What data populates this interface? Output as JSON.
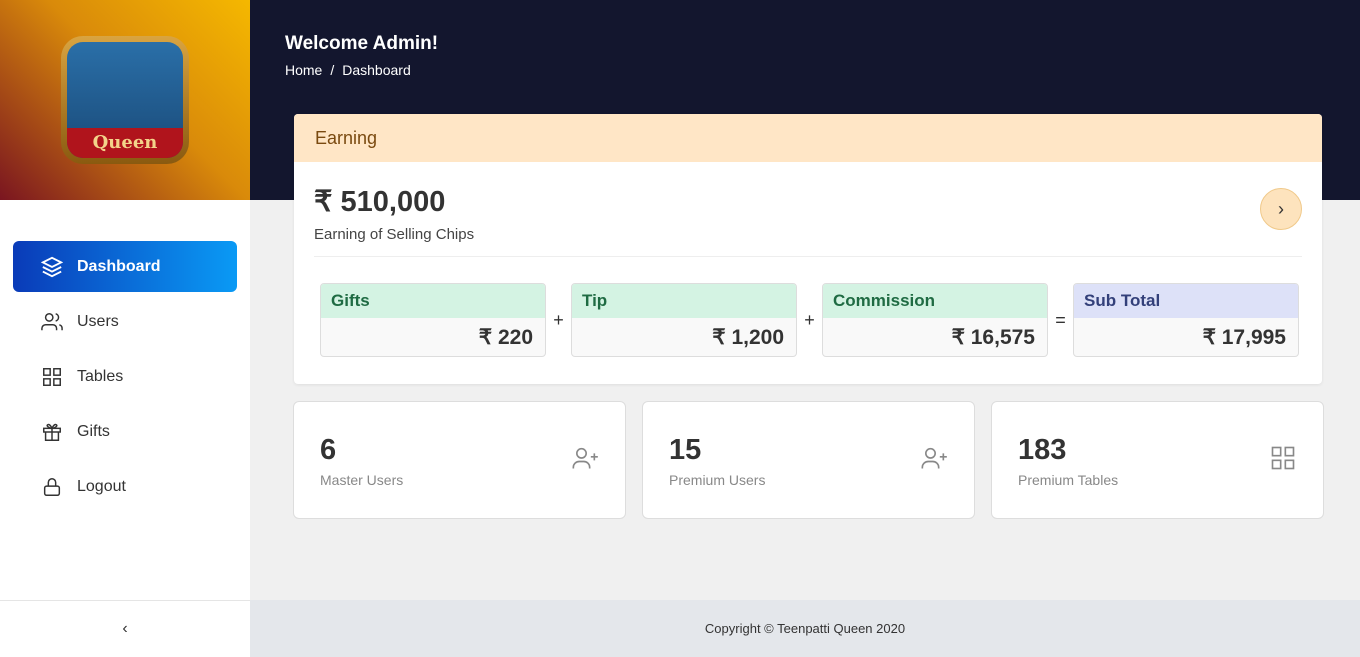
{
  "brand": {
    "logo_text": "Queen"
  },
  "sidebar": {
    "items": [
      {
        "label": "Dashboard",
        "icon": "layers-icon",
        "active": true
      },
      {
        "label": "Users",
        "icon": "users-icon"
      },
      {
        "label": "Tables",
        "icon": "grid-icon"
      },
      {
        "label": "Gifts",
        "icon": "gift-icon"
      },
      {
        "label": "Logout",
        "icon": "lock-icon"
      }
    ],
    "collapse": "‹"
  },
  "header": {
    "title": "Welcome Admin!",
    "breadcrumb": [
      "Home",
      "/",
      "Dashboard"
    ]
  },
  "earning": {
    "title": "Earning",
    "amount": "₹ 510,000",
    "subtitle": "Earning of Selling Chips",
    "arrow": "›",
    "boxes": [
      {
        "label": "Gifts",
        "value": "₹ 220"
      },
      {
        "op": "+"
      },
      {
        "label": "Tip",
        "value": "₹ 1,200"
      },
      {
        "op": "+"
      },
      {
        "label": "Commission",
        "value": "₹ 16,575"
      },
      {
        "op": "="
      },
      {
        "label": "Sub Total",
        "value": "₹ 17,995"
      }
    ]
  },
  "stats": [
    {
      "value": "6",
      "label": "Master Users",
      "icon": "user-plus-icon"
    },
    {
      "value": "15",
      "label": "Premium Users",
      "icon": "user-plus-icon"
    },
    {
      "value": "183",
      "label": "Premium Tables",
      "icon": "grid-icon"
    }
  ],
  "footer": "Copyright © Teenpatti Queen 2020"
}
